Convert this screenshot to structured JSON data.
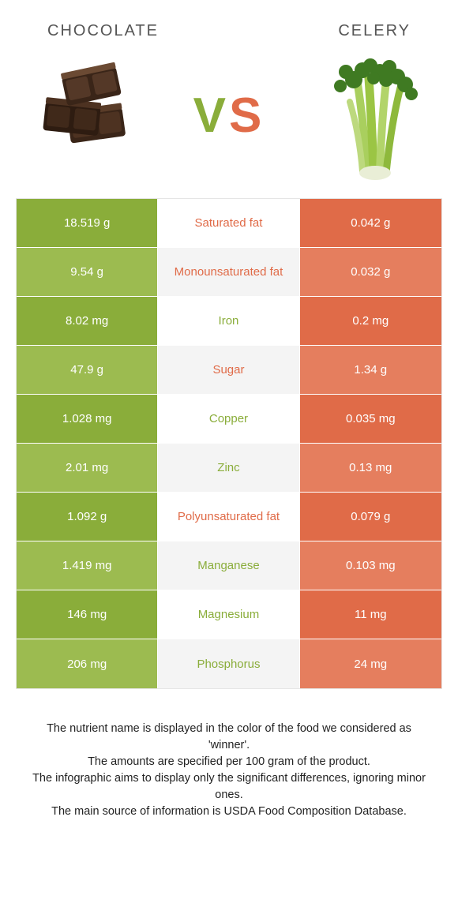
{
  "header": {
    "left_title": "Chocolate",
    "right_title": "Celery"
  },
  "vs": {
    "v": "V",
    "s": "S"
  },
  "colors": {
    "left_bg": "#8aad3a",
    "left_alt_bg": "#9cbb50",
    "right_bg": "#e06b48",
    "right_alt_bg": "#e57e5e",
    "mid_bg": "#ffffff",
    "mid_alt_bg": "#f4f4f4",
    "left_text": "#8aad3a",
    "right_text": "#e06b48"
  },
  "rows": [
    {
      "left": "18.519 g",
      "label": "Saturated fat",
      "right": "0.042 g",
      "winner": "right"
    },
    {
      "left": "9.54 g",
      "label": "Monounsaturated fat",
      "right": "0.032 g",
      "winner": "right"
    },
    {
      "left": "8.02 mg",
      "label": "Iron",
      "right": "0.2 mg",
      "winner": "left"
    },
    {
      "left": "47.9 g",
      "label": "Sugar",
      "right": "1.34 g",
      "winner": "right"
    },
    {
      "left": "1.028 mg",
      "label": "Copper",
      "right": "0.035 mg",
      "winner": "left"
    },
    {
      "left": "2.01 mg",
      "label": "Zinc",
      "right": "0.13 mg",
      "winner": "left"
    },
    {
      "left": "1.092 g",
      "label": "Polyunsaturated fat",
      "right": "0.079 g",
      "winner": "right"
    },
    {
      "left": "1.419 mg",
      "label": "Manganese",
      "right": "0.103 mg",
      "winner": "left"
    },
    {
      "left": "146 mg",
      "label": "Magnesium",
      "right": "11 mg",
      "winner": "left"
    },
    {
      "left": "206 mg",
      "label": "Phosphorus",
      "right": "24 mg",
      "winner": "left"
    }
  ],
  "footer": {
    "line1": "The nutrient name is displayed in the color of the food we considered as 'winner'.",
    "line2": "The amounts are specified per 100 gram of the product.",
    "line3": "The infographic aims to display only the significant differences, ignoring minor ones.",
    "line4": "The main source of information is USDA Food Composition Database."
  }
}
